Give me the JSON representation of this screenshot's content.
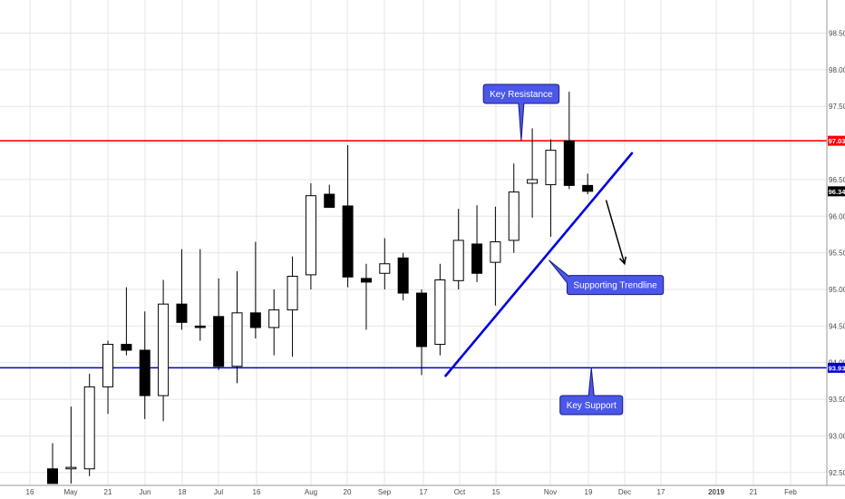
{
  "chart_data": {
    "type": "candlestick",
    "price_range": [
      92.4,
      98.85
    ],
    "y_ticks": [
      "92.50",
      "93.00",
      "93.50",
      "94.00",
      "94.50",
      "95.00",
      "95.50",
      "96.00",
      "96.50",
      "97.00",
      "97.50",
      "98.00",
      "98.50"
    ],
    "x_ticks": [
      "16",
      "May",
      "21",
      "Jun",
      "18",
      "Jul",
      "16",
      "Aug",
      "20",
      "Sep",
      "17",
      "Oct",
      "15",
      "Nov",
      "19",
      "Dec",
      "17",
      "2019",
      "21",
      "Feb"
    ],
    "bold_x_ticks": [
      "2019"
    ],
    "candles": [
      {
        "o": 92.55,
        "h": 92.9,
        "l": 92.35,
        "c": 92.35
      },
      {
        "o": 92.55,
        "h": 93.4,
        "l": 92.35,
        "c": 92.57
      },
      {
        "o": 92.55,
        "h": 93.85,
        "l": 92.45,
        "c": 93.67
      },
      {
        "o": 93.67,
        "h": 94.3,
        "l": 93.3,
        "c": 94.25
      },
      {
        "o": 94.25,
        "h": 95.03,
        "l": 94.1,
        "c": 94.17
      },
      {
        "o": 94.17,
        "h": 94.7,
        "l": 93.23,
        "c": 93.55
      },
      {
        "o": 93.55,
        "h": 95.13,
        "l": 93.2,
        "c": 94.8
      },
      {
        "o": 94.8,
        "h": 95.55,
        "l": 94.45,
        "c": 94.55
      },
      {
        "o": 94.5,
        "h": 95.55,
        "l": 94.3,
        "c": 94.48
      },
      {
        "o": 94.63,
        "h": 95.15,
        "l": 93.9,
        "c": 93.95
      },
      {
        "o": 93.95,
        "h": 95.25,
        "l": 93.72,
        "c": 94.68
      },
      {
        "o": 94.68,
        "h": 95.65,
        "l": 94.33,
        "c": 94.48
      },
      {
        "o": 94.48,
        "h": 95.0,
        "l": 94.1,
        "c": 94.72
      },
      {
        "o": 94.72,
        "h": 95.45,
        "l": 94.08,
        "c": 95.18
      },
      {
        "o": 95.2,
        "h": 96.45,
        "l": 95.0,
        "c": 96.28
      },
      {
        "o": 96.3,
        "h": 96.43,
        "l": 96.12,
        "c": 96.12
      },
      {
        "o": 96.14,
        "h": 96.97,
        "l": 95.03,
        "c": 95.17
      },
      {
        "o": 95.15,
        "h": 95.35,
        "l": 94.45,
        "c": 95.1
      },
      {
        "o": 95.22,
        "h": 95.7,
        "l": 95.0,
        "c": 95.35
      },
      {
        "o": 95.43,
        "h": 95.5,
        "l": 94.85,
        "c": 94.95
      },
      {
        "o": 94.95,
        "h": 95.0,
        "l": 93.83,
        "c": 94.22
      },
      {
        "o": 94.25,
        "h": 95.35,
        "l": 94.1,
        "c": 95.13
      },
      {
        "o": 95.12,
        "h": 96.1,
        "l": 95.0,
        "c": 95.67
      },
      {
        "o": 95.62,
        "h": 96.15,
        "l": 95.1,
        "c": 95.22
      },
      {
        "o": 95.37,
        "h": 96.13,
        "l": 94.78,
        "c": 95.65
      },
      {
        "o": 95.67,
        "h": 96.72,
        "l": 95.5,
        "c": 96.33
      },
      {
        "o": 96.45,
        "h": 97.2,
        "l": 95.98,
        "c": 96.5
      },
      {
        "o": 96.43,
        "h": 97.05,
        "l": 95.72,
        "c": 96.9
      },
      {
        "o": 97.03,
        "h": 97.7,
        "l": 96.37,
        "c": 96.42
      },
      {
        "o": 96.42,
        "h": 96.58,
        "l": 96.3,
        "c": 96.34
      }
    ],
    "horizontal_lines": [
      {
        "value": 97.03,
        "color": "#ff0000",
        "label": "97.03"
      },
      {
        "value": 93.93,
        "color": "#0000cc",
        "label": "93.93"
      }
    ],
    "current_price": {
      "value": 96.34,
      "label": "96.34",
      "color": "#000000"
    },
    "trendline": {
      "from": {
        "candle": 21.3,
        "price": 93.82
      },
      "to": {
        "candle": 31.4,
        "price": 96.86
      },
      "color": "#0000dd"
    },
    "arrow": {
      "from": {
        "candle": 30.0,
        "price": 96.22
      },
      "to": {
        "candle": 31.0,
        "price": 95.35
      }
    },
    "annotations": [
      {
        "text": "Key Resistance",
        "anchor_candle": 25.4,
        "anchor_price": 97.03,
        "label_price": 97.67,
        "pointer": "down"
      },
      {
        "text": "Supporting Trendline",
        "anchor_candle": 26.9,
        "anchor_price": 95.4,
        "label_price": 95.06,
        "pointer": "up-left"
      },
      {
        "text": "Key Support",
        "anchor_candle": 29.2,
        "anchor_price": 93.93,
        "label_price": 93.42,
        "pointer": "up"
      }
    ],
    "colors": {
      "bull_body": "#ffffff",
      "bear_body": "#000000",
      "wick": "#000000",
      "annotation_bg": "#4b57e8",
      "annotation_border": "#1a1a80",
      "grid": "#e6e6e6"
    }
  }
}
